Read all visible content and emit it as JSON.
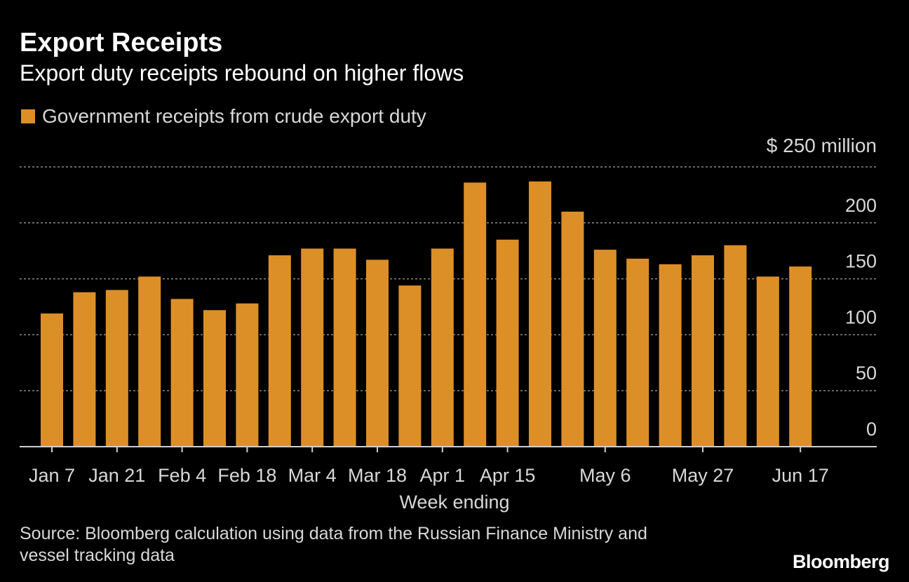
{
  "header": {
    "title": "Export Receipts",
    "subtitle": "Export duty receipts rebound on higher flows"
  },
  "legend": {
    "label": "Government receipts from crude export duty"
  },
  "axis": {
    "unit_label": "$ 250  million",
    "x_label": "Week ending"
  },
  "footer": {
    "source_line1": "Source: Bloomberg calculation using data from the Russian Finance Ministry and",
    "source_line2": "vessel tracking data",
    "brand": "Bloomberg"
  },
  "colors": {
    "bar": "#dd8f27",
    "grid": "#8a8a8a",
    "axis": "#cfcfcf",
    "text": "#d8d8d8"
  },
  "chart_data": {
    "type": "bar",
    "ylim": [
      0,
      250
    ],
    "yticks": [
      0,
      50,
      100,
      150,
      200
    ],
    "grid": true,
    "legend_position": "top-left",
    "xlabel": "Week ending",
    "x_tick_labels": [
      "Jan 7",
      "Jan 21",
      "Feb 4",
      "Feb 18",
      "Mar 4",
      "Mar 18",
      "Apr 1",
      "Apr 15",
      "May 6",
      "May 27",
      "Jun 17"
    ],
    "x_tick_positions": [
      0,
      2,
      4,
      6,
      8,
      10,
      12,
      14,
      17,
      20,
      23
    ],
    "series": [
      {
        "name": "Government receipts from crude export duty",
        "values": [
          119,
          138,
          140,
          152,
          132,
          122,
          128,
          171,
          177,
          177,
          167,
          144,
          177,
          236,
          185,
          237,
          210,
          176,
          168,
          163,
          171,
          180,
          152,
          161
        ]
      }
    ]
  }
}
